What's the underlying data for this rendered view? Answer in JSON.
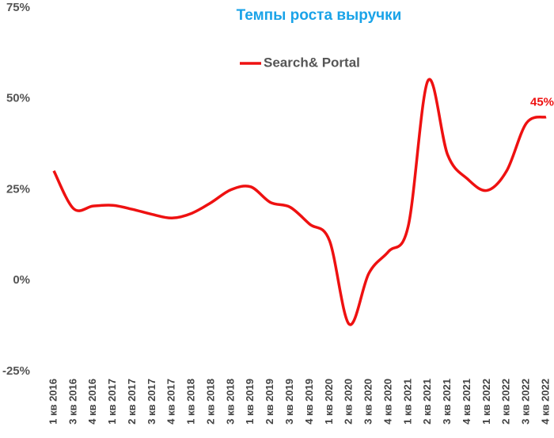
{
  "chart_data": {
    "type": "line",
    "title": "Темпы роста выручки",
    "title_color": "#1aa3e8",
    "categories": [
      "1 кв 2016",
      "3 кв 2016",
      "4 кв 2016",
      "1 кв 2017",
      "2 кв 2017",
      "3 кв 2017",
      "4 кв 2017",
      "1 кв 2018",
      "2 кв 2018",
      "3 кв 2018",
      "1 кв 2019",
      "2 кв 2019",
      "3 кв 2019",
      "4 кв 2019",
      "1 кв 2020",
      "2 кв 2020",
      "3 кв 2020",
      "4 кв 2020",
      "1 кв 2021",
      "2 кв 2021",
      "3 кв 2021",
      "4 кв 2021",
      "1 кв 2022",
      "2 кв 2022",
      "3 кв 2022",
      "4 кв 2022"
    ],
    "series": [
      {
        "name": "Search& Portal",
        "color": "#ee1111",
        "values": [
          30.2,
          19.8,
          20.5,
          20.7,
          19.6,
          18.2,
          17.2,
          18.5,
          21.5,
          25,
          25.8,
          21.5,
          20.2,
          15.5,
          11,
          -12,
          2,
          8,
          15,
          55,
          34.6,
          28,
          24.8,
          30.2,
          43.3,
          45
        ],
        "value_labels": [
          null,
          null,
          null,
          null,
          null,
          null,
          null,
          null,
          null,
          null,
          null,
          null,
          null,
          null,
          null,
          null,
          null,
          null,
          null,
          null,
          null,
          null,
          null,
          null,
          null,
          "45%"
        ]
      }
    ],
    "ylim": [
      -25,
      75
    ],
    "yticks": [
      {
        "value": -25,
        "label": "-25%"
      },
      {
        "value": 0,
        "label": "0%"
      },
      {
        "value": 25,
        "label": "25%"
      },
      {
        "value": 50,
        "label": "50%"
      },
      {
        "value": 75,
        "label": "75%"
      }
    ],
    "grid": false
  }
}
